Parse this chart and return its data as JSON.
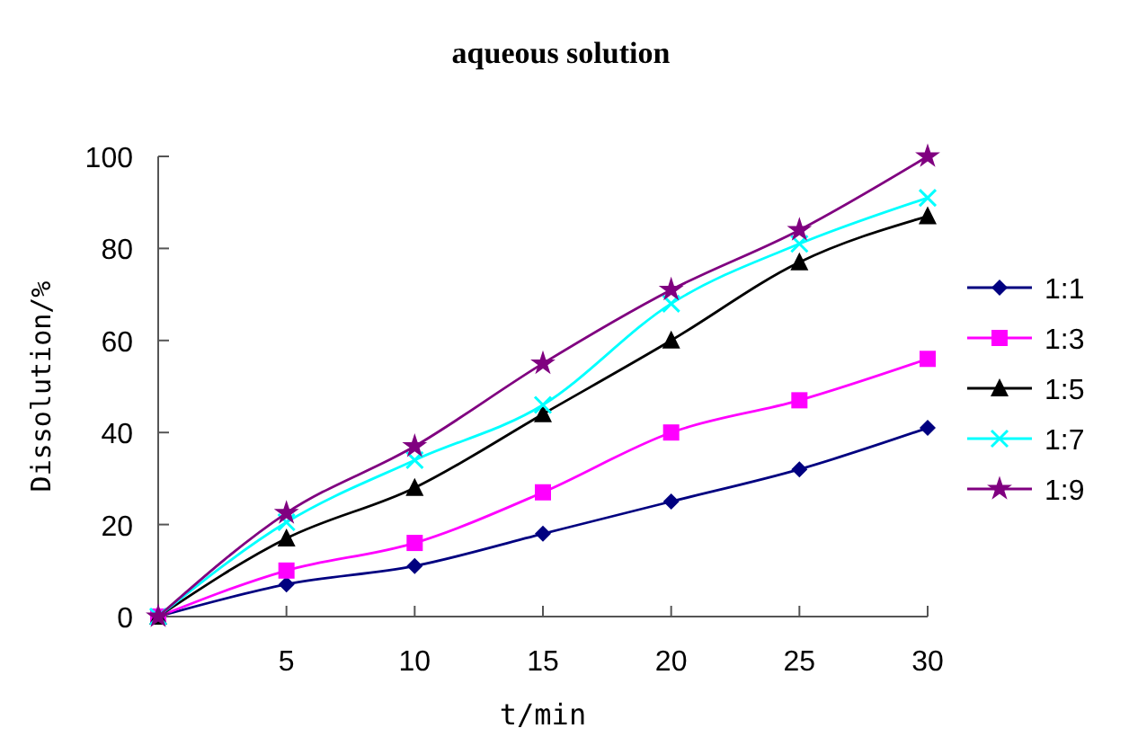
{
  "chart_data": {
    "type": "line",
    "title": "aqueous solution",
    "xlabel": "t/min",
    "ylabel": "Dissolution/%",
    "x": [
      0,
      5,
      10,
      15,
      20,
      25,
      30
    ],
    "xlim": [
      0,
      30
    ],
    "xticks": [
      {
        "value": 0,
        "label": null
      },
      5,
      10,
      15,
      20,
      25,
      30
    ],
    "ylim": [
      0,
      100
    ],
    "yticks": [
      0,
      20,
      40,
      60,
      80,
      100
    ],
    "grid": false,
    "legend": "right",
    "series": [
      {
        "name": "1:1",
        "color": "#000080",
        "marker": "diamond",
        "values": [
          0,
          7,
          11,
          18,
          25,
          32,
          41
        ]
      },
      {
        "name": "1:3",
        "color": "#ff00ff",
        "marker": "square",
        "values": [
          0,
          10,
          16,
          27,
          40,
          47,
          56
        ]
      },
      {
        "name": "1:5",
        "color": "#000000",
        "marker": "triangle",
        "values": [
          0,
          17,
          28,
          44,
          60,
          77,
          87
        ]
      },
      {
        "name": "1:7",
        "color": "#00ffff",
        "marker": "cross",
        "values": [
          0,
          20.5,
          34,
          46,
          68,
          81,
          91
        ]
      },
      {
        "name": "1:9",
        "color": "#800080",
        "marker": "star",
        "values": [
          0,
          22.5,
          37,
          55,
          71,
          84,
          100
        ]
      }
    ]
  }
}
